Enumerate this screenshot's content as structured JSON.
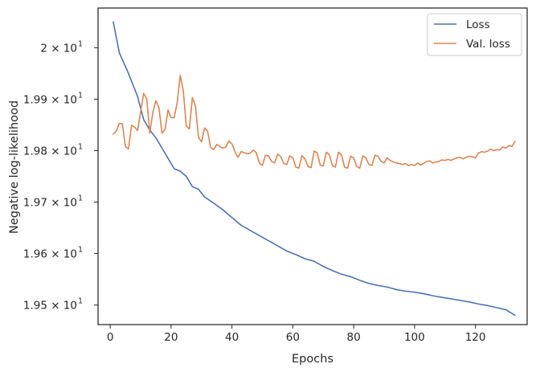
{
  "chart_data": {
    "type": "line",
    "xlabel": "Epochs",
    "ylabel": "Negative log-likelihood",
    "xlim": [
      -4,
      137
    ],
    "ylim": [
      19.462,
      20.077
    ],
    "x_ticks": [
      0,
      20,
      40,
      60,
      80,
      100,
      120
    ],
    "y_ticks": [
      {
        "value": 19.5,
        "label": "1.95 × 10"
      },
      {
        "value": 19.6,
        "label": "1.96 × 10"
      },
      {
        "value": 19.7,
        "label": "1.97 × 10"
      },
      {
        "value": 19.8,
        "label": "1.98 × 10"
      },
      {
        "value": 19.9,
        "label": "1.99 × 10"
      },
      {
        "value": 20.0,
        "label": "2 × 10"
      }
    ],
    "y_tick_exponent": "1",
    "grid": false,
    "legend_position": "top-right",
    "series": [
      {
        "name": "Loss",
        "color": "#4c72b0",
        "x": [
          1,
          3,
          6,
          9,
          11,
          13,
          15,
          17,
          19,
          21,
          23,
          25,
          27,
          29,
          31,
          34,
          37,
          40,
          43,
          46,
          49,
          52,
          55,
          58,
          61,
          64,
          67,
          70,
          73,
          76,
          79,
          82,
          85,
          88,
          91,
          94,
          97,
          100,
          103,
          106,
          109,
          112,
          115,
          118,
          121,
          124,
          127,
          130,
          133
        ],
        "y": [
          20.05,
          19.99,
          19.95,
          19.905,
          19.86,
          19.84,
          19.825,
          19.805,
          19.785,
          19.765,
          19.76,
          19.75,
          19.73,
          19.725,
          19.71,
          19.698,
          19.685,
          19.67,
          19.655,
          19.645,
          19.635,
          19.625,
          19.615,
          19.605,
          19.598,
          19.59,
          19.585,
          19.575,
          19.567,
          19.56,
          19.555,
          19.548,
          19.542,
          19.538,
          19.535,
          19.53,
          19.527,
          19.525,
          19.522,
          19.518,
          19.515,
          19.512,
          19.509,
          19.506,
          19.502,
          19.499,
          19.495,
          19.491,
          19.48
        ]
      },
      {
        "name": "Val. loss",
        "color": "#dd8452",
        "x": [
          1,
          2,
          3,
          4,
          5,
          6,
          7,
          8,
          9,
          10,
          11,
          12,
          13,
          14,
          15,
          16,
          17,
          18,
          19,
          20,
          21,
          22,
          23,
          24,
          25,
          26,
          27,
          28,
          29,
          30,
          31,
          32,
          33,
          34,
          35,
          36,
          37,
          38,
          39,
          40,
          41,
          42,
          43,
          44,
          45,
          46,
          47,
          48,
          49,
          50,
          51,
          52,
          53,
          54,
          55,
          56,
          57,
          58,
          59,
          60,
          61,
          62,
          63,
          64,
          65,
          66,
          67,
          68,
          69,
          70,
          71,
          72,
          73,
          74,
          75,
          76,
          77,
          78,
          79,
          80,
          81,
          82,
          83,
          84,
          85,
          86,
          87,
          88,
          89,
          90,
          91,
          92,
          93,
          94,
          95,
          96,
          97,
          98,
          99,
          100,
          101,
          102,
          103,
          104,
          105,
          106,
          107,
          108,
          109,
          110,
          111,
          112,
          113,
          114,
          115,
          116,
          117,
          118,
          119,
          120,
          121,
          122,
          123,
          124,
          125,
          126,
          127,
          128,
          129,
          130,
          131,
          132,
          133
        ],
        "y": [
          19.832,
          19.838,
          19.853,
          19.852,
          19.808,
          19.803,
          19.849,
          19.846,
          19.839,
          19.876,
          19.911,
          19.901,
          19.834,
          19.874,
          19.897,
          19.884,
          19.834,
          19.841,
          19.879,
          19.864,
          19.864,
          19.893,
          19.946,
          19.917,
          19.848,
          19.842,
          19.903,
          19.887,
          19.826,
          19.817,
          19.844,
          19.838,
          19.806,
          19.802,
          19.812,
          19.808,
          19.805,
          19.807,
          19.819,
          19.813,
          19.798,
          19.787,
          19.798,
          19.796,
          19.794,
          19.795,
          19.801,
          19.796,
          19.776,
          19.771,
          19.791,
          19.79,
          19.779,
          19.776,
          19.793,
          19.789,
          19.775,
          19.773,
          19.79,
          19.786,
          19.768,
          19.766,
          19.79,
          19.784,
          19.769,
          19.767,
          19.799,
          19.796,
          19.772,
          19.77,
          19.797,
          19.792,
          19.771,
          19.768,
          19.797,
          19.792,
          19.768,
          19.766,
          19.789,
          19.786,
          19.769,
          19.766,
          19.79,
          19.786,
          19.773,
          19.771,
          19.791,
          19.789,
          19.779,
          19.776,
          19.786,
          19.781,
          19.778,
          19.776,
          19.775,
          19.773,
          19.775,
          19.771,
          19.773,
          19.771,
          19.776,
          19.772,
          19.775,
          19.779,
          19.78,
          19.776,
          19.778,
          19.779,
          19.782,
          19.781,
          19.783,
          19.781,
          19.784,
          19.786,
          19.787,
          19.784,
          19.787,
          19.789,
          19.788,
          19.786,
          19.795,
          19.798,
          19.797,
          19.799,
          19.803,
          19.8,
          19.802,
          19.801,
          19.807,
          19.805,
          19.81,
          19.808,
          19.818
        ]
      }
    ]
  }
}
